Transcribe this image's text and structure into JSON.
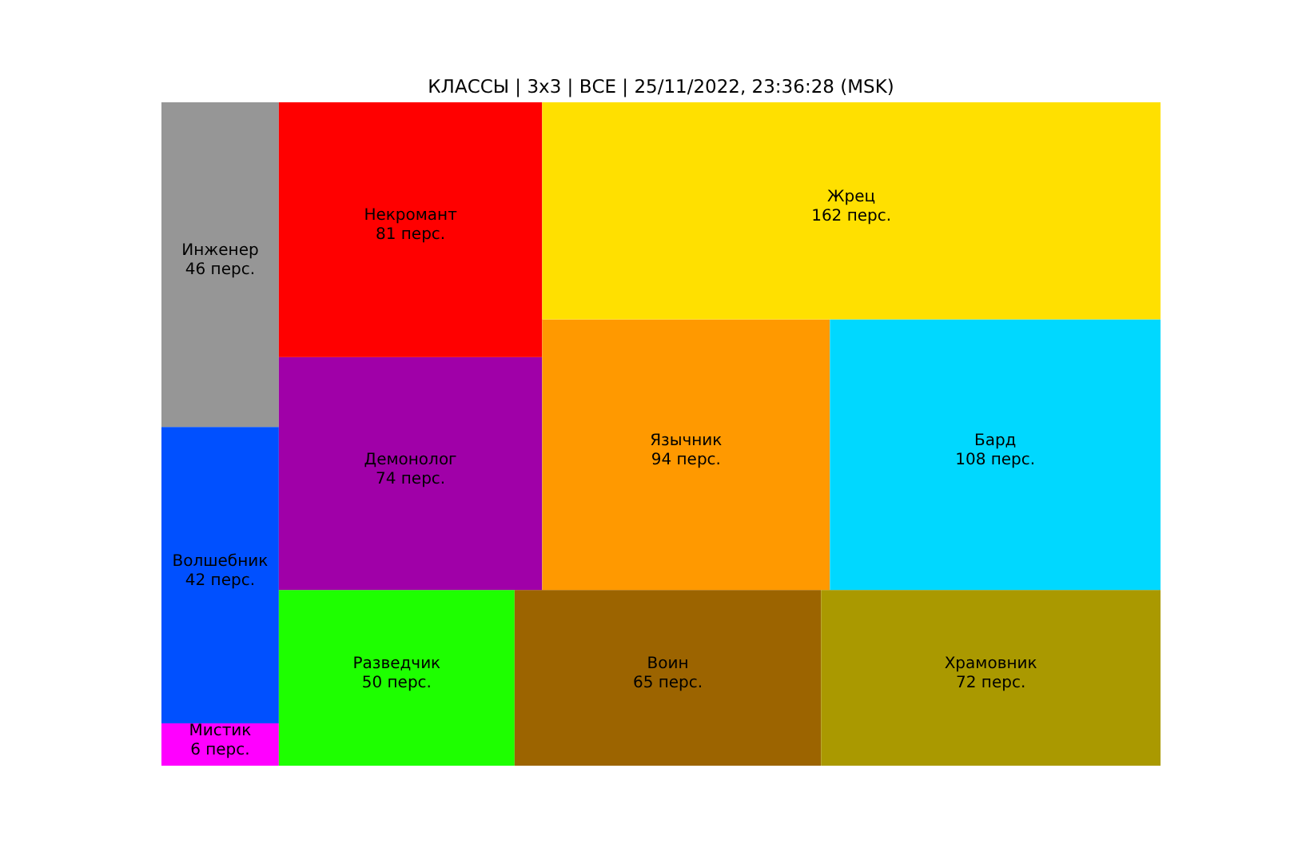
{
  "chart_data": {
    "type": "other",
    "title": "КЛАССЫ | 3x3 | ВСЕ | 25/11/2022, 23:36:28 (MSK)",
    "categories": [
      "Мистик",
      "Волшебник",
      "Инженер",
      "Разведчик",
      "Воин",
      "Храмовник",
      "Демонолог",
      "Некромант",
      "Язычник",
      "Бард",
      "Жрец"
    ],
    "values": [
      6,
      42,
      46,
      50,
      65,
      72,
      74,
      81,
      94,
      108,
      162
    ],
    "value_labels": [
      "6 перс.",
      "42 перс.",
      "46 перс.",
      "50 перс.",
      "65 перс.",
      "72 перс.",
      "74 перс.",
      "81 перс.",
      "94 перс.",
      "108 перс.",
      "162 перс."
    ],
    "colors": [
      "#ff00ff",
      "#0050ff",
      "#969696",
      "#1eff00",
      "#9c6400",
      "#aa9900",
      "#a000a8",
      "#ff0000",
      "#ff9900",
      "#00d8ff",
      "#ffe000"
    ]
  }
}
